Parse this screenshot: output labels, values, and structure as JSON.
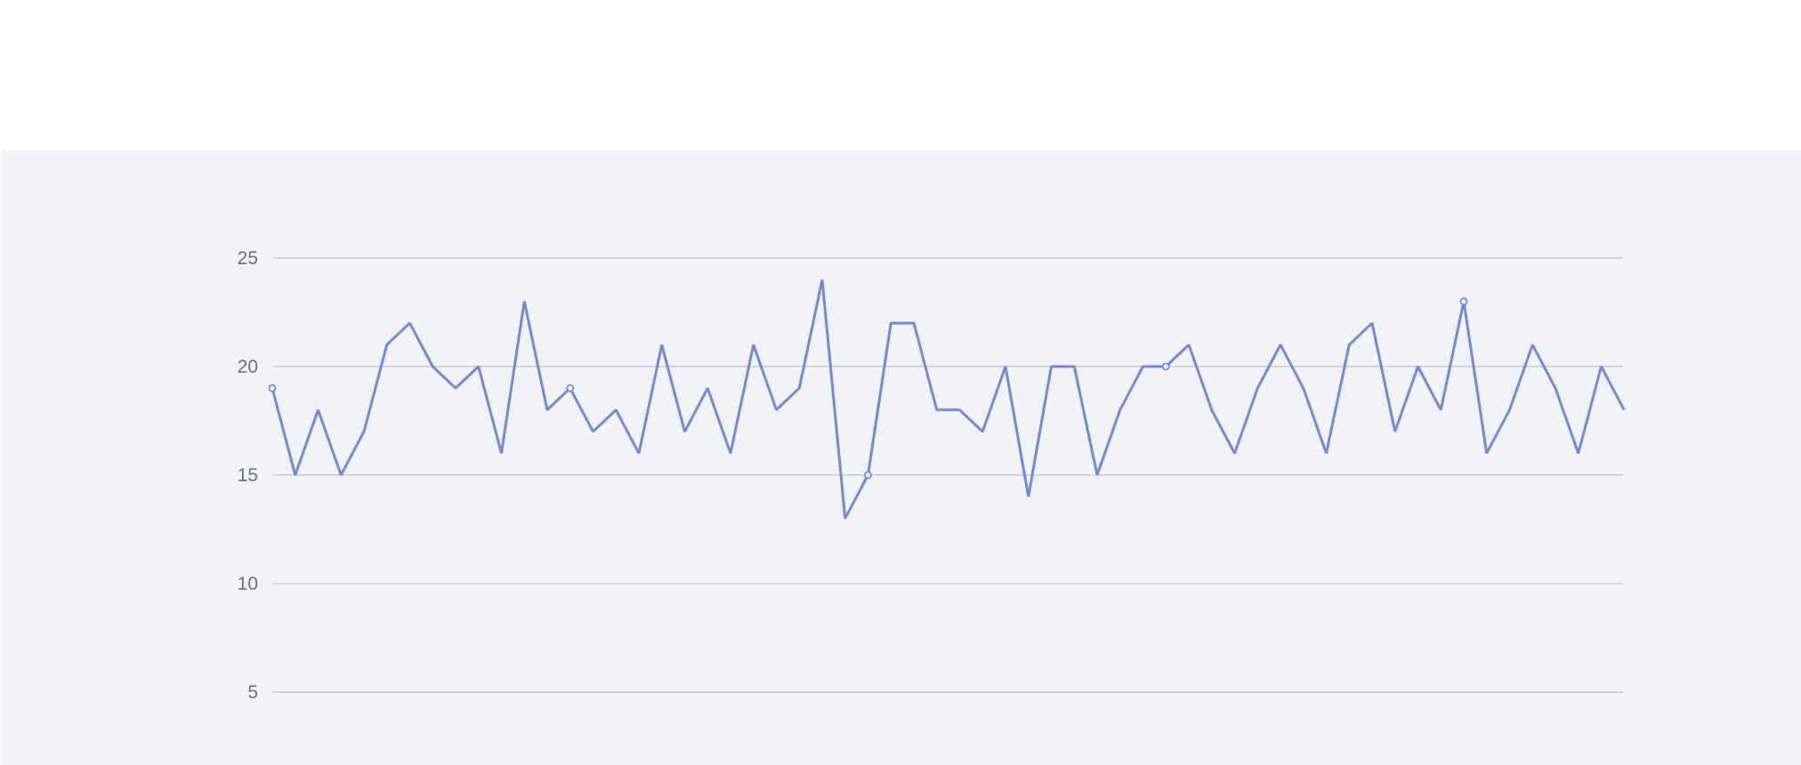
{
  "chart_data": {
    "type": "line",
    "title": "",
    "xlabel": "",
    "ylabel": "",
    "ylim": [
      5,
      25
    ],
    "y_ticks": [
      "5",
      "10",
      "15",
      "20",
      "25"
    ],
    "grid": "horizontal",
    "series": [
      {
        "values": [
          19,
          15,
          18,
          15,
          17,
          21,
          22,
          20,
          19,
          20,
          16,
          23,
          18,
          19,
          17,
          18,
          16,
          21,
          17,
          19,
          16,
          21,
          18,
          19,
          24,
          13,
          15,
          22,
          22,
          18,
          18,
          17,
          20,
          14,
          20,
          20,
          15,
          18,
          20,
          20,
          21,
          18,
          16,
          19,
          21,
          19,
          16,
          21,
          22,
          17,
          20,
          18,
          23,
          16,
          18,
          21,
          19,
          16,
          20,
          18
        ],
        "marked_points": [
          0,
          13,
          26,
          39,
          52
        ],
        "color": "#6f8be0"
      }
    ]
  }
}
